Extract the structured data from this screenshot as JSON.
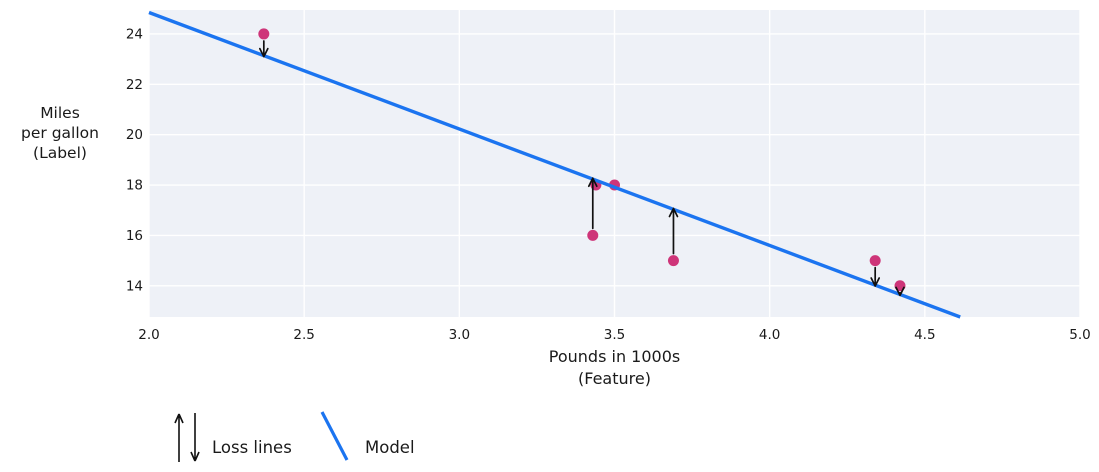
{
  "figure": {
    "background": "#ffffff",
    "plot_background": "#eef1f7",
    "grid_color": "#ffffff",
    "text_color": "#1a1a1a"
  },
  "chart_data": {
    "type": "scatter",
    "title": "",
    "xlabel": "Pounds in 1000s\n(Feature)",
    "ylabel": "Miles\nper gallon\n(Label)",
    "xlim": [
      2.0,
      5.0
    ],
    "ylim": [
      12.76,
      24.95
    ],
    "grid": true,
    "x_ticks": {
      "values": [
        2.0,
        2.5,
        3.0,
        3.5,
        4.0,
        4.5,
        5.0
      ],
      "labels": [
        "2.0",
        "2.5",
        "3.0",
        "3.5",
        "4.0",
        "4.5",
        "5.0"
      ]
    },
    "y_ticks": {
      "values": [
        14,
        16,
        18,
        20,
        22,
        24
      ],
      "labels": [
        "14",
        "16",
        "18",
        "20",
        "22",
        "24"
      ]
    },
    "series": [
      {
        "name": "data-points",
        "type": "scatter",
        "color": "#ce3579",
        "marker_radius": 5.5,
        "points": [
          {
            "x": 2.37,
            "y": 24
          },
          {
            "x": 3.44,
            "y": 18
          },
          {
            "x": 3.5,
            "y": 18
          },
          {
            "x": 3.43,
            "y": 16
          },
          {
            "x": 3.69,
            "y": 15
          },
          {
            "x": 4.34,
            "y": 15
          },
          {
            "x": 4.42,
            "y": 14
          }
        ]
      },
      {
        "name": "Model",
        "type": "line",
        "color": "#1b74f0",
        "width": 3.4,
        "points": [
          {
            "x": 2.0,
            "y": 24.85
          },
          {
            "x": 4.614,
            "y": 12.76
          }
        ]
      },
      {
        "name": "Loss lines",
        "type": "arrows",
        "color": "#111111",
        "arrows": [
          {
            "x": 2.37,
            "from": 24,
            "to": 23.14,
            "direction": "down"
          },
          {
            "x": 3.43,
            "from": 16,
            "to": 18.23,
            "direction": "up"
          },
          {
            "x": 3.69,
            "from": 15,
            "to": 17.03,
            "direction": "up"
          },
          {
            "x": 4.34,
            "from": 15,
            "to": 14.03,
            "direction": "down"
          },
          {
            "x": 4.42,
            "from": 14,
            "to": 13.66,
            "direction": "down"
          }
        ]
      }
    ],
    "legend": {
      "position": "bottom-left",
      "items": [
        {
          "symbol": "arrows",
          "label": "Loss lines",
          "color": "#111111"
        },
        {
          "symbol": "line",
          "label": "Model",
          "color": "#1b74f0"
        }
      ]
    }
  }
}
